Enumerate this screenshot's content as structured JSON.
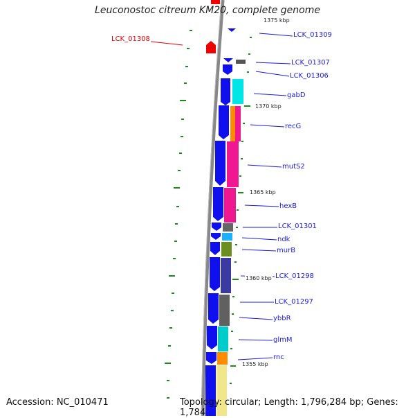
{
  "title": "Leuconostoc citreum KM20, complete genome",
  "footer": {
    "accession": "Accession: NC_010471",
    "summary": "Topology: circular; Length: 1,796,284 bp; Genes: 1,784"
  },
  "ticks": [
    {
      "label": "1375 kbp"
    },
    {
      "label": "1370 kbp"
    },
    {
      "label": "1365 kbp"
    },
    {
      "label": "1360 kbp"
    },
    {
      "label": "1355 kbp"
    }
  ],
  "gene_labels": [
    {
      "name": "LCK_01309",
      "color": "#1a1adc"
    },
    {
      "name": "LCK_01308",
      "color": "#e00000"
    },
    {
      "name": "LCK_01307",
      "color": "#1a1adc"
    },
    {
      "name": "LCK_01306",
      "color": "#1a1adc"
    },
    {
      "name": "gabD",
      "color": "#1a1adc"
    },
    {
      "name": "recG",
      "color": "#1a1adc"
    },
    {
      "name": "mutS2",
      "color": "#1a1adc"
    },
    {
      "name": "hexB",
      "color": "#1a1adc"
    },
    {
      "name": "LCK_01301",
      "color": "#1a1adc"
    },
    {
      "name": "ndk",
      "color": "#1a1adc"
    },
    {
      "name": "murB",
      "color": "#1a1adc"
    },
    {
      "name": "LCK_01298",
      "color": "#1a1adc"
    },
    {
      "name": "LCK_01297",
      "color": "#1a1adc"
    },
    {
      "name": "ybbR",
      "color": "#1a1adc"
    },
    {
      "name": "glmM",
      "color": "#1a1adc"
    },
    {
      "name": "rnc",
      "color": "#1a1adc"
    }
  ],
  "colors": {
    "backbone": "#777777",
    "forward_genes": "#1a1aef",
    "reverse_genes": "#e00000",
    "gc_skew": "#1a8a1a",
    "label_line": "#1a1adc"
  }
}
